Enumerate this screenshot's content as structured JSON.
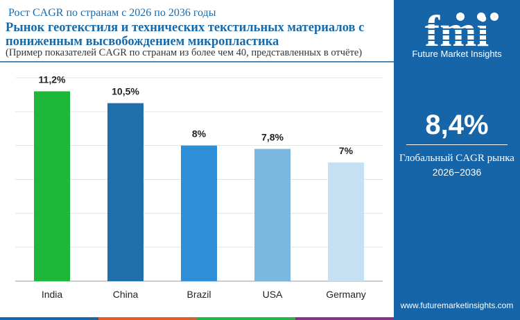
{
  "header": {
    "subtitle": "Рост CAGR по странам с 2026 по 2036 годы",
    "title": "Рынок геотекстиля и технических текстильных материалов с пониженным высвобождением микропластика",
    "note": "(Пример показателей CAGR по странам из более чем 40, представленных в отчёте)"
  },
  "panel": {
    "brand": "Future Market Insights",
    "logo_text": "fmi",
    "cagr": "8,4%",
    "cagr_label": "Глобальный CAGR рынка",
    "period": "2026−2036",
    "url": "www.futuremarketinsights.com",
    "bg": "#1565a8"
  },
  "chart_data": {
    "type": "bar",
    "categories": [
      "India",
      "China",
      "Brazil",
      "USA",
      "Germany"
    ],
    "values": [
      11.2,
      10.5,
      8,
      7.8,
      7
    ],
    "labels": [
      "11,2%",
      "10,5%",
      "8%",
      "7,8%",
      "7%"
    ],
    "colors": [
      "#1db83a",
      "#1f6fad",
      "#2e8fd6",
      "#7ab8e0",
      "#c4e0f2"
    ],
    "ylim": [
      0,
      12
    ],
    "grid": true,
    "xlabel": "",
    "ylabel": ""
  }
}
